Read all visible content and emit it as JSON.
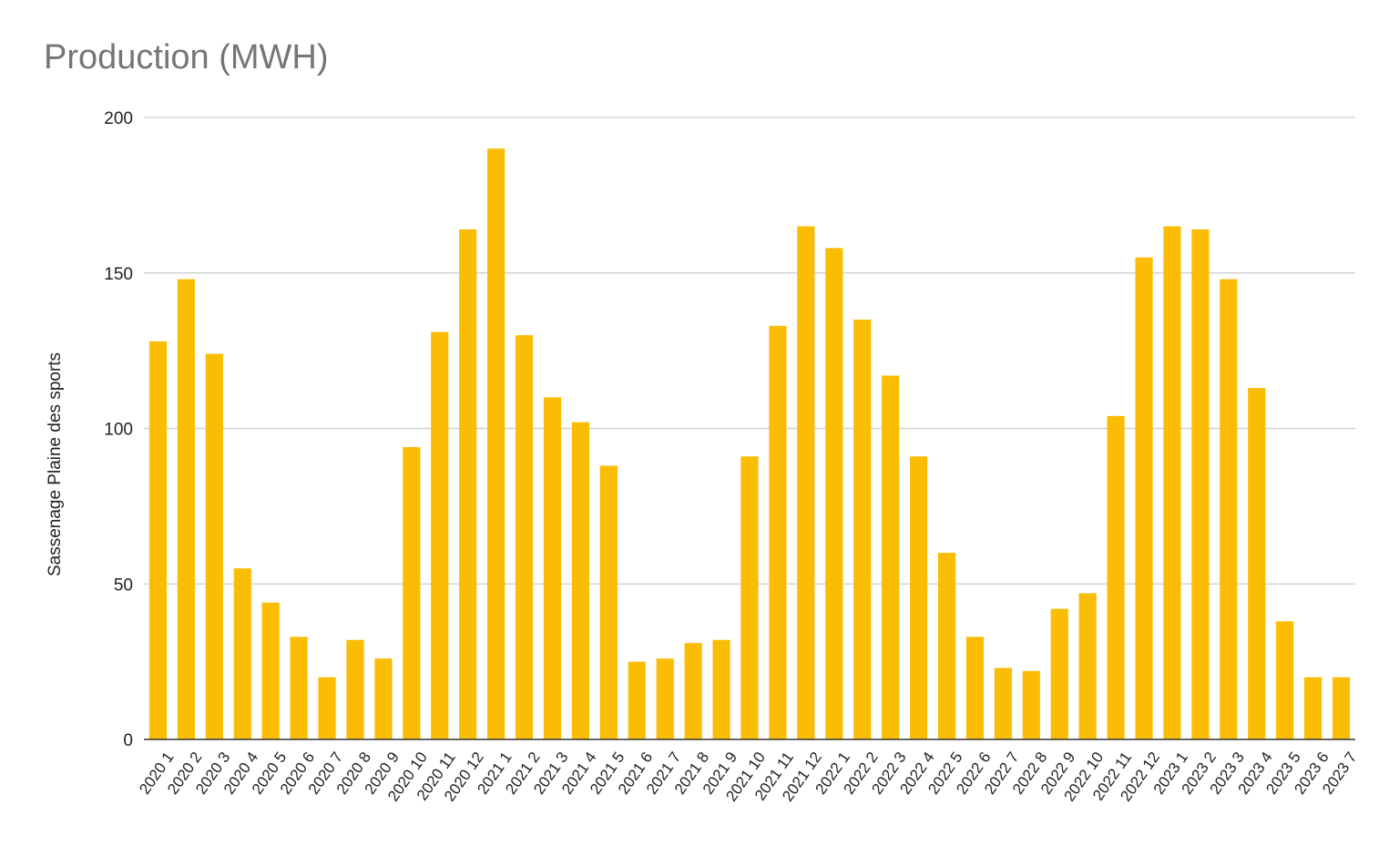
{
  "chart_data": {
    "type": "bar",
    "title": "Production (MWH)",
    "xlabel": "",
    "ylabel": "Sassenage Plaine des sports",
    "ylim": [
      0,
      200
    ],
    "yticks": [
      0,
      50,
      100,
      150,
      200
    ],
    "grid": true,
    "legend": "none",
    "bar_color": "#fbbc04",
    "categories": [
      "2020 1",
      "2020 2",
      "2020 3",
      "2020 4",
      "2020 5",
      "2020 6",
      "2020 7",
      "2020 8",
      "2020 9",
      "2020 10",
      "2020 11",
      "2020 12",
      "2021 1",
      "2021 2",
      "2021 3",
      "2021 4",
      "2021 5",
      "2021 6",
      "2021 7",
      "2021 8",
      "2021 9",
      "2021 10",
      "2021 11",
      "2021 12",
      "2022 1",
      "2022 2",
      "2022 3",
      "2022 4",
      "2022 5",
      "2022 6",
      "2022 7",
      "2022 8",
      "2022 9",
      "2022 10",
      "2022 11",
      "2022 12",
      "2023 1",
      "2023 2",
      "2023 3",
      "2023 4",
      "2023 5",
      "2023 6",
      "2023 7"
    ],
    "values": [
      128,
      148,
      124,
      55,
      44,
      33,
      20,
      32,
      26,
      94,
      131,
      164,
      190,
      130,
      110,
      102,
      88,
      25,
      26,
      31,
      32,
      91,
      133,
      165,
      158,
      135,
      117,
      91,
      60,
      33,
      23,
      22,
      42,
      47,
      104,
      155,
      165,
      164,
      148,
      113,
      38,
      20,
      20
    ]
  }
}
